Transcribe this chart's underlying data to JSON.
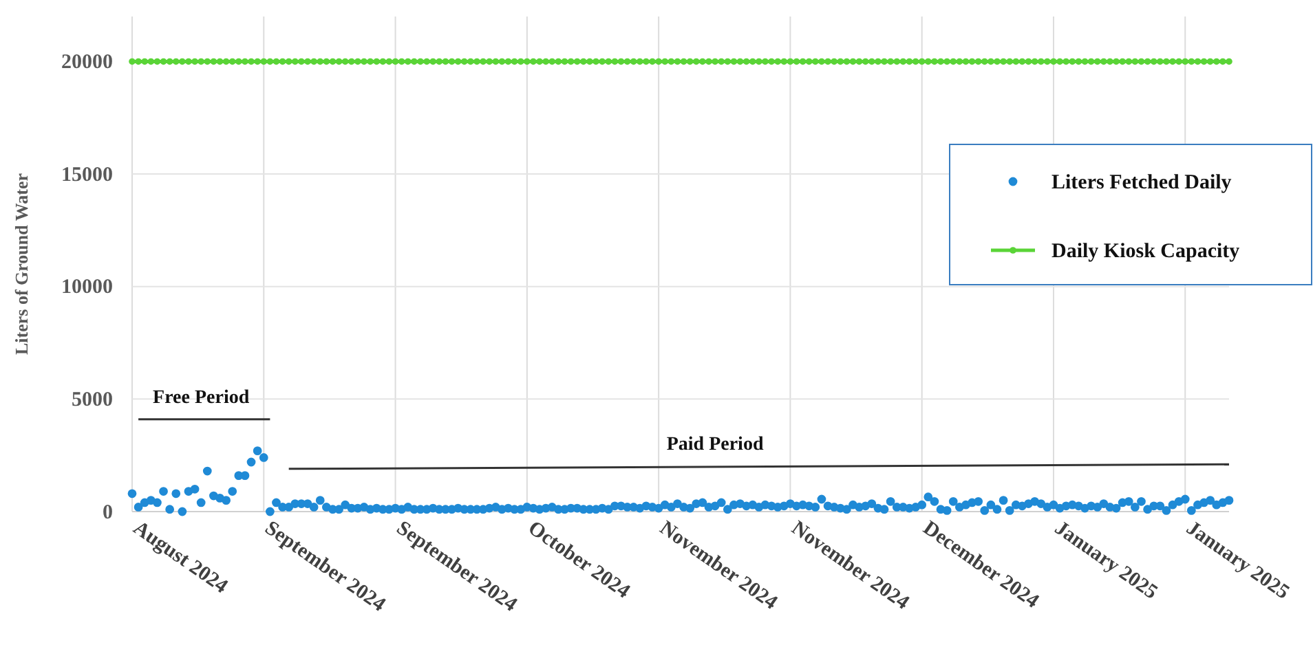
{
  "chart_data": {
    "type": "scatter",
    "ylabel": "Liters of Ground Water",
    "categories": [
      "August 2024",
      null,
      null,
      null,
      null,
      null,
      null,
      null,
      null,
      null,
      null,
      null,
      null,
      null,
      null,
      null,
      null,
      null,
      null,
      null,
      null,
      "September 2024",
      null,
      null,
      null,
      null,
      null,
      null,
      null,
      null,
      null,
      null,
      null,
      null,
      null,
      null,
      null,
      null,
      null,
      null,
      null,
      null,
      "September 2024",
      null,
      null,
      null,
      null,
      null,
      null,
      null,
      null,
      null,
      null,
      null,
      null,
      null,
      null,
      null,
      null,
      null,
      null,
      null,
      null,
      "October 2024",
      null,
      null,
      null,
      null,
      null,
      null,
      null,
      null,
      null,
      null,
      null,
      null,
      null,
      null,
      null,
      null,
      null,
      null,
      null,
      null,
      "November 2024",
      null,
      null,
      null,
      null,
      null,
      null,
      null,
      null,
      null,
      null,
      null,
      null,
      null,
      null,
      null,
      null,
      null,
      null,
      null,
      null,
      "November 2024",
      null,
      null,
      null,
      null,
      null,
      null,
      null,
      null,
      null,
      null,
      null,
      null,
      null,
      null,
      null,
      null,
      null,
      null,
      null,
      null,
      "December 2024",
      null,
      null,
      null,
      null,
      null,
      null,
      null,
      null,
      null,
      null,
      null,
      null,
      null,
      null,
      null,
      null,
      null,
      null,
      null,
      null,
      "January 2025",
      null,
      null,
      null,
      null,
      null,
      null,
      null,
      null,
      null,
      null,
      null,
      null,
      null,
      null,
      null,
      null,
      null,
      null,
      null,
      null,
      "January 2025",
      null,
      null,
      null,
      null,
      null,
      null,
      null
    ],
    "ylim": [
      0,
      22000
    ],
    "yticks": [
      0,
      5000,
      10000,
      15000,
      20000
    ],
    "grid": true,
    "legend": "right",
    "marker": "circle",
    "series": [
      {
        "name": "Liters Fetched Daily",
        "color": "#1f8ad6",
        "values": [
          800,
          200,
          400,
          500,
          400,
          900,
          100,
          800,
          0,
          900,
          1000,
          400,
          1800,
          700,
          600,
          500,
          900,
          1600,
          1600,
          2200,
          2700,
          2400,
          0,
          400,
          200,
          200,
          350,
          350,
          350,
          200,
          500,
          200,
          100,
          100,
          300,
          150,
          150,
          200,
          100,
          150,
          100,
          100,
          150,
          100,
          200,
          100,
          100,
          100,
          150,
          100,
          100,
          100,
          150,
          100,
          100,
          100,
          100,
          150,
          200,
          100,
          150,
          100,
          100,
          200,
          150,
          100,
          150,
          200,
          100,
          100,
          150,
          150,
          100,
          100,
          100,
          150,
          100,
          250,
          250,
          200,
          200,
          150,
          250,
          200,
          150,
          300,
          200,
          350,
          200,
          150,
          350,
          400,
          200,
          250,
          400,
          100,
          300,
          350,
          250,
          300,
          200,
          300,
          250,
          200,
          250,
          350,
          250,
          300,
          250,
          200,
          550,
          250,
          200,
          150,
          100,
          300,
          200,
          250,
          350,
          150,
          100,
          450,
          200,
          200,
          150,
          200,
          300,
          650,
          450,
          100,
          50,
          450,
          200,
          300,
          400,
          450,
          50,
          300,
          100,
          500,
          50,
          300,
          250,
          350,
          450,
          350,
          200,
          300,
          150,
          250,
          300,
          250,
          150,
          250,
          200,
          350,
          200,
          150,
          400,
          450,
          200,
          450,
          100,
          250,
          250,
          50,
          300,
          450,
          550,
          50,
          300,
          400,
          500,
          300,
          400,
          500
        ]
      },
      {
        "name": "Daily Kiosk Capacity",
        "type": "line",
        "color": "#5ad437",
        "line_style": "solid",
        "values": [
          20000,
          20000,
          20000,
          20000,
          20000,
          20000,
          20000,
          20000,
          20000,
          20000,
          20000,
          20000,
          20000,
          20000,
          20000,
          20000,
          20000,
          20000,
          20000,
          20000,
          20000,
          20000,
          20000,
          20000,
          20000,
          20000,
          20000,
          20000,
          20000,
          20000,
          20000,
          20000,
          20000,
          20000,
          20000,
          20000,
          20000,
          20000,
          20000,
          20000,
          20000,
          20000,
          20000,
          20000,
          20000,
          20000,
          20000,
          20000,
          20000,
          20000,
          20000,
          20000,
          20000,
          20000,
          20000,
          20000,
          20000,
          20000,
          20000,
          20000,
          20000,
          20000,
          20000,
          20000,
          20000,
          20000,
          20000,
          20000,
          20000,
          20000,
          20000,
          20000,
          20000,
          20000,
          20000,
          20000,
          20000,
          20000,
          20000,
          20000,
          20000,
          20000,
          20000,
          20000,
          20000,
          20000,
          20000,
          20000,
          20000,
          20000,
          20000,
          20000,
          20000,
          20000,
          20000,
          20000,
          20000,
          20000,
          20000,
          20000,
          20000,
          20000,
          20000,
          20000,
          20000,
          20000,
          20000,
          20000,
          20000,
          20000,
          20000,
          20000,
          20000,
          20000,
          20000,
          20000,
          20000,
          20000,
          20000,
          20000,
          20000,
          20000,
          20000,
          20000,
          20000,
          20000,
          20000,
          20000,
          20000,
          20000,
          20000,
          20000,
          20000,
          20000,
          20000,
          20000,
          20000,
          20000,
          20000,
          20000,
          20000,
          20000,
          20000,
          20000,
          20000,
          20000,
          20000,
          20000,
          20000,
          20000,
          20000,
          20000,
          20000,
          20000,
          20000,
          20000,
          20000,
          20000,
          20000,
          20000,
          20000,
          20000,
          20000,
          20000,
          20000,
          20000,
          20000,
          20000,
          20000,
          20000,
          20000,
          20000,
          20000,
          20000,
          20000,
          20000
        ]
      },
      {
        "type": "line",
        "color": "#333333",
        "marker": "none",
        "values": [
          null,
          4100,
          null,
          null,
          null,
          null,
          null,
          null,
          null,
          null,
          null,
          null,
          null,
          null,
          null,
          null,
          null,
          null,
          null,
          null,
          null,
          null,
          4100,
          null,
          null,
          null,
          null,
          null,
          null,
          null,
          null,
          null,
          null,
          null,
          null,
          null,
          null,
          null,
          null,
          null,
          null,
          null,
          null,
          null,
          null,
          null,
          null,
          null,
          null,
          null,
          null,
          null,
          null,
          null,
          null,
          null,
          null,
          null,
          null,
          null,
          null,
          null,
          null,
          null,
          null,
          null,
          null,
          null,
          null,
          null,
          null,
          null,
          null,
          null,
          null,
          null,
          null,
          null,
          null,
          null,
          null,
          null,
          null,
          null,
          null,
          null,
          null,
          null,
          null,
          null,
          null,
          null,
          null,
          null,
          null,
          null,
          null,
          null,
          null,
          null,
          null,
          null,
          null,
          null,
          null,
          null,
          null,
          null,
          null,
          null,
          null,
          null,
          null,
          null,
          null,
          null,
          null,
          null,
          null,
          null,
          null,
          null,
          null,
          null,
          null,
          null,
          null,
          null,
          null,
          null,
          null,
          null,
          null,
          null,
          null,
          null,
          null,
          null,
          null,
          null,
          null,
          null,
          null,
          null,
          null,
          null,
          null,
          null,
          null,
          null,
          null,
          null,
          null,
          null,
          null,
          null,
          null,
          null,
          null,
          null,
          null,
          null,
          null,
          null,
          null,
          null,
          null,
          null,
          null,
          null,
          null,
          null,
          null,
          null,
          null,
          null
        ]
      },
      {
        "type": "line",
        "color": "#333333",
        "marker": "none",
        "values": [
          null,
          null,
          null,
          null,
          null,
          null,
          null,
          null,
          null,
          null,
          null,
          null,
          null,
          null,
          null,
          null,
          null,
          null,
          null,
          null,
          null,
          null,
          null,
          null,
          null,
          1900,
          null,
          null,
          null,
          null,
          null,
          null,
          null,
          null,
          null,
          null,
          null,
          null,
          null,
          null,
          null,
          null,
          null,
          null,
          null,
          null,
          null,
          null,
          null,
          null,
          null,
          null,
          null,
          null,
          null,
          null,
          null,
          null,
          null,
          null,
          null,
          null,
          null,
          null,
          null,
          null,
          null,
          null,
          null,
          null,
          null,
          null,
          null,
          null,
          null,
          null,
          null,
          null,
          null,
          null,
          null,
          null,
          null,
          null,
          null,
          null,
          null,
          null,
          null,
          null,
          null,
          null,
          null,
          null,
          null,
          null,
          null,
          null,
          null,
          null,
          null,
          null,
          null,
          null,
          null,
          null,
          null,
          null,
          null,
          null,
          null,
          null,
          null,
          null,
          null,
          null,
          null,
          null,
          null,
          null,
          null,
          null,
          null,
          null,
          null,
          null,
          null,
          null,
          null,
          null,
          null,
          null,
          null,
          null,
          null,
          null,
          null,
          null,
          null,
          null,
          null,
          null,
          null,
          null,
          null,
          null,
          null,
          null,
          null,
          null,
          null,
          null,
          null,
          null,
          null,
          null,
          null,
          null,
          null,
          null,
          null,
          null,
          null,
          null,
          null,
          null,
          null,
          null,
          null,
          null,
          null,
          null,
          null,
          null,
          null,
          2100
        ]
      }
    ],
    "annotations": [
      "Free Period",
      "Paid Period"
    ]
  }
}
